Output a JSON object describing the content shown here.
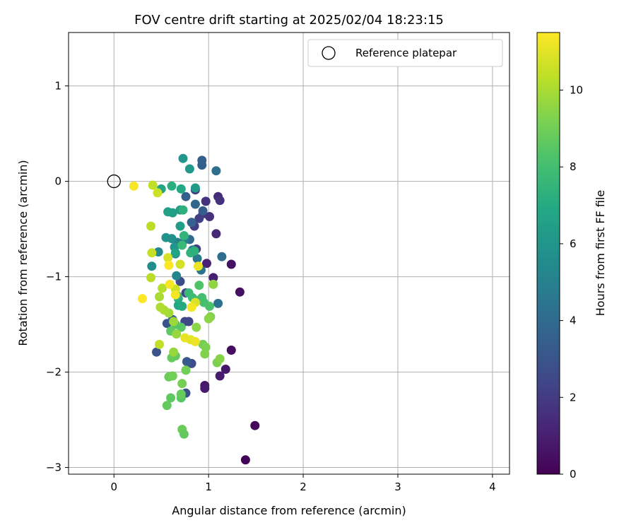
{
  "chart_data": {
    "type": "scatter",
    "title": "FOV centre drift starting at 2025/02/04 18:23:15",
    "xlabel": "Angular distance from reference (arcmin)",
    "ylabel": "Rotation from reference (arcmin)",
    "xlim": [
      -0.48,
      4.18
    ],
    "ylim": [
      -3.07,
      1.56
    ],
    "xticks": [
      0,
      1,
      2,
      3,
      4
    ],
    "yticks": [
      1,
      0,
      -1,
      -2,
      -3
    ],
    "xtick_labels": [
      "0",
      "1",
      "2",
      "3",
      "4"
    ],
    "ytick_labels": [
      "1",
      "0",
      "−1",
      "−2",
      "−3"
    ],
    "grid": true,
    "legend": {
      "placement": "upper-right",
      "entry": "Reference platepar"
    },
    "reference_point": {
      "x": 0,
      "y": 0
    },
    "colorbar": {
      "label": "Hours from first FF file",
      "colormap": "viridis",
      "range": [
        0,
        11.5
      ],
      "ticks": [
        0,
        2,
        4,
        6,
        8,
        10
      ],
      "tick_labels": [
        "0",
        "2",
        "4",
        "6",
        "8",
        "10"
      ]
    },
    "points": [
      {
        "x": 1.39,
        "y": -2.92,
        "h": 0.1
      },
      {
        "x": 1.49,
        "y": -2.56,
        "h": 0.2
      },
      {
        "x": 1.33,
        "y": -1.16,
        "h": 0.5
      },
      {
        "x": 1.24,
        "y": -0.87,
        "h": 0.5
      },
      {
        "x": 1.24,
        "y": -1.77,
        "h": 0.4
      },
      {
        "x": 1.18,
        "y": -1.97,
        "h": 0.7
      },
      {
        "x": 1.12,
        "y": -2.04,
        "h": 0.9
      },
      {
        "x": 0.96,
        "y": -2.14,
        "h": 0.8
      },
      {
        "x": 0.96,
        "y": -2.17,
        "h": 0.9
      },
      {
        "x": 1.05,
        "y": -1.01,
        "h": 1.0
      },
      {
        "x": 0.98,
        "y": -0.86,
        "h": 1.1
      },
      {
        "x": 1.08,
        "y": -0.55,
        "h": 1.3
      },
      {
        "x": 1.1,
        "y": -0.16,
        "h": 1.4
      },
      {
        "x": 1.12,
        "y": -0.2,
        "h": 1.6
      },
      {
        "x": 1.01,
        "y": -0.37,
        "h": 1.6
      },
      {
        "x": 0.97,
        "y": -0.21,
        "h": 1.7
      },
      {
        "x": 0.94,
        "y": -0.34,
        "h": 1.8
      },
      {
        "x": 0.86,
        "y": -0.09,
        "h": 1.9
      },
      {
        "x": 0.85,
        "y": -0.47,
        "h": 2.0
      },
      {
        "x": 0.9,
        "y": -0.39,
        "h": 2.1
      },
      {
        "x": 0.87,
        "y": -0.71,
        "h": 2.1
      },
      {
        "x": 0.76,
        "y": -1.17,
        "h": 2.3
      },
      {
        "x": 0.79,
        "y": -1.47,
        "h": 2.4
      },
      {
        "x": 0.75,
        "y": -1.47,
        "h": 2.5
      },
      {
        "x": 0.7,
        "y": -1.05,
        "h": 2.6
      },
      {
        "x": 0.82,
        "y": -1.91,
        "h": 2.7
      },
      {
        "x": 0.76,
        "y": -2.22,
        "h": 2.8
      },
      {
        "x": 0.45,
        "y": -1.79,
        "h": 2.9
      },
      {
        "x": 0.56,
        "y": -1.49,
        "h": 3.0
      },
      {
        "x": 0.77,
        "y": -1.89,
        "h": 3.2
      },
      {
        "x": 0.62,
        "y": -1.45,
        "h": 3.3
      },
      {
        "x": 0.93,
        "y": 0.22,
        "h": 3.5
      },
      {
        "x": 0.93,
        "y": 0.17,
        "h": 3.4
      },
      {
        "x": 1.08,
        "y": 0.11,
        "h": 4.2
      },
      {
        "x": 0.94,
        "y": -0.31,
        "h": 3.4
      },
      {
        "x": 0.86,
        "y": -0.24,
        "h": 3.8
      },
      {
        "x": 0.82,
        "y": -0.43,
        "h": 3.6
      },
      {
        "x": 0.8,
        "y": -0.61,
        "h": 3.9
      },
      {
        "x": 0.76,
        "y": -0.16,
        "h": 3.5
      },
      {
        "x": 1.14,
        "y": -0.79,
        "h": 4.1
      },
      {
        "x": 1.1,
        "y": -1.28,
        "h": 4.3
      },
      {
        "x": 0.92,
        "y": -0.93,
        "h": 4.4
      },
      {
        "x": 0.88,
        "y": -0.81,
        "h": 4.6
      },
      {
        "x": 0.83,
        "y": -0.72,
        "h": 4.7
      },
      {
        "x": 0.75,
        "y": -0.61,
        "h": 4.9
      },
      {
        "x": 0.67,
        "y": -0.64,
        "h": 5.0
      },
      {
        "x": 0.65,
        "y": -0.76,
        "h": 5.1
      },
      {
        "x": 0.66,
        "y": -0.99,
        "h": 5.2
      },
      {
        "x": 0.47,
        "y": -0.74,
        "h": 5.4
      },
      {
        "x": 0.4,
        "y": -0.89,
        "h": 5.6
      },
      {
        "x": 0.61,
        "y": -0.6,
        "h": 5.7
      },
      {
        "x": 0.55,
        "y": -0.59,
        "h": 5.8
      },
      {
        "x": 0.64,
        "y": -0.69,
        "h": 5.9
      },
      {
        "x": 0.73,
        "y": 0.24,
        "h": 6.0
      },
      {
        "x": 0.8,
        "y": 0.13,
        "h": 6.1
      },
      {
        "x": 0.7,
        "y": -0.3,
        "h": 6.3
      },
      {
        "x": 0.62,
        "y": -0.33,
        "h": 6.4
      },
      {
        "x": 0.57,
        "y": -0.32,
        "h": 6.5
      },
      {
        "x": 0.65,
        "y": -0.75,
        "h": 6.6
      },
      {
        "x": 0.7,
        "y": -0.47,
        "h": 6.4
      },
      {
        "x": 0.5,
        "y": -0.08,
        "h": 6.7
      },
      {
        "x": 0.71,
        "y": -0.08,
        "h": 6.9
      },
      {
        "x": 0.86,
        "y": -0.07,
        "h": 6.2
      },
      {
        "x": 0.68,
        "y": -1.3,
        "h": 6.8
      },
      {
        "x": 0.72,
        "y": -1.31,
        "h": 7.0
      },
      {
        "x": 0.68,
        "y": -1.23,
        "h": 7.1
      },
      {
        "x": 0.61,
        "y": -0.05,
        "h": 7.2
      },
      {
        "x": 0.73,
        "y": -0.3,
        "h": 7.3
      },
      {
        "x": 0.81,
        "y": -0.75,
        "h": 7.4
      },
      {
        "x": 0.85,
        "y": -0.73,
        "h": 7.3
      },
      {
        "x": 0.74,
        "y": -0.57,
        "h": 7.5
      },
      {
        "x": 0.67,
        "y": -1.2,
        "h": 7.6
      },
      {
        "x": 0.72,
        "y": -0.67,
        "h": 7.7
      },
      {
        "x": 0.79,
        "y": -1.17,
        "h": 7.7
      },
      {
        "x": 0.83,
        "y": -1.22,
        "h": 7.8
      },
      {
        "x": 0.91,
        "y": -1.24,
        "h": 7.9
      },
      {
        "x": 0.93,
        "y": -1.22,
        "h": 8.0
      },
      {
        "x": 0.95,
        "y": -1.27,
        "h": 8.1
      },
      {
        "x": 1.01,
        "y": -1.31,
        "h": 8.2
      },
      {
        "x": 0.9,
        "y": -1.09,
        "h": 8.3
      },
      {
        "x": 0.65,
        "y": -1.5,
        "h": 8.4
      },
      {
        "x": 0.71,
        "y": -1.53,
        "h": 8.5
      },
      {
        "x": 0.6,
        "y": -1.57,
        "h": 8.6
      },
      {
        "x": 0.65,
        "y": -1.83,
        "h": 8.7
      },
      {
        "x": 0.61,
        "y": -1.85,
        "h": 8.8
      },
      {
        "x": 0.58,
        "y": -2.05,
        "h": 8.9
      },
      {
        "x": 0.62,
        "y": -2.04,
        "h": 9.0
      },
      {
        "x": 0.56,
        "y": -2.35,
        "h": 8.7
      },
      {
        "x": 0.6,
        "y": -2.27,
        "h": 8.6
      },
      {
        "x": 0.71,
        "y": -2.27,
        "h": 8.5
      },
      {
        "x": 0.71,
        "y": -2.23,
        "h": 8.8
      },
      {
        "x": 0.72,
        "y": -2.6,
        "h": 8.9
      },
      {
        "x": 0.74,
        "y": -2.65,
        "h": 8.7
      },
      {
        "x": 0.72,
        "y": -2.12,
        "h": 9.1
      },
      {
        "x": 0.76,
        "y": -1.98,
        "h": 9.0
      },
      {
        "x": 0.94,
        "y": -1.71,
        "h": 9.1
      },
      {
        "x": 0.97,
        "y": -1.74,
        "h": 9.2
      },
      {
        "x": 0.96,
        "y": -1.81,
        "h": 9.3
      },
      {
        "x": 1.09,
        "y": -1.9,
        "h": 9.2
      },
      {
        "x": 1.12,
        "y": -1.86,
        "h": 9.4
      },
      {
        "x": 1.02,
        "y": -1.42,
        "h": 9.3
      },
      {
        "x": 1.0,
        "y": -1.44,
        "h": 9.5
      },
      {
        "x": 1.05,
        "y": -1.08,
        "h": 9.6
      },
      {
        "x": 0.87,
        "y": -1.53,
        "h": 9.5
      },
      {
        "x": 0.63,
        "y": -1.79,
        "h": 9.7
      },
      {
        "x": 0.63,
        "y": -1.47,
        "h": 9.8
      },
      {
        "x": 0.66,
        "y": -1.6,
        "h": 9.7
      },
      {
        "x": 0.58,
        "y": -1.38,
        "h": 9.9
      },
      {
        "x": 0.53,
        "y": -1.35,
        "h": 10.0
      },
      {
        "x": 0.49,
        "y": -1.32,
        "h": 10.1
      },
      {
        "x": 0.48,
        "y": -1.21,
        "h": 10.0
      },
      {
        "x": 0.51,
        "y": -1.12,
        "h": 10.2
      },
      {
        "x": 0.39,
        "y": -1.01,
        "h": 10.3
      },
      {
        "x": 0.48,
        "y": -1.71,
        "h": 10.4
      },
      {
        "x": 0.4,
        "y": -0.75,
        "h": 10.5
      },
      {
        "x": 0.39,
        "y": -0.47,
        "h": 10.3
      },
      {
        "x": 0.46,
        "y": -0.12,
        "h": 10.6
      },
      {
        "x": 0.41,
        "y": -0.04,
        "h": 10.4
      },
      {
        "x": 0.7,
        "y": -0.87,
        "h": 10.7
      },
      {
        "x": 0.57,
        "y": -0.8,
        "h": 10.8
      },
      {
        "x": 0.65,
        "y": -1.13,
        "h": 10.6
      },
      {
        "x": 0.86,
        "y": -1.27,
        "h": 10.9
      },
      {
        "x": 0.81,
        "y": -1.66,
        "h": 11.0
      },
      {
        "x": 0.75,
        "y": -1.64,
        "h": 11.1
      },
      {
        "x": 0.86,
        "y": -1.68,
        "h": 11.2
      },
      {
        "x": 0.82,
        "y": -1.32,
        "h": 11.3
      },
      {
        "x": 0.65,
        "y": -1.19,
        "h": 11.3
      },
      {
        "x": 0.59,
        "y": -1.08,
        "h": 11.4
      },
      {
        "x": 0.58,
        "y": -0.88,
        "h": 11.5
      },
      {
        "x": 0.89,
        "y": -0.89,
        "h": 11.2
      },
      {
        "x": 0.21,
        "y": -0.05,
        "h": 11.4
      },
      {
        "x": 0.3,
        "y": -1.23,
        "h": 11.5
      }
    ]
  }
}
